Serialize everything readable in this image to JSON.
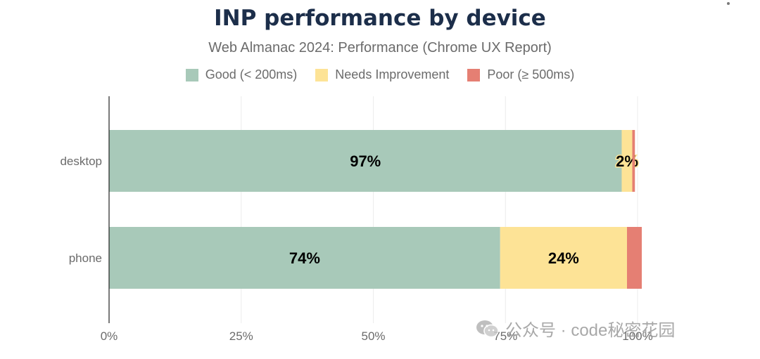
{
  "chart_data": {
    "type": "bar",
    "orientation": "horizontal",
    "stacked": true,
    "title": "INP performance by device",
    "subtitle": "Web Almanac 2024: Performance (Chrome UX Report)",
    "categories": [
      "desktop",
      "phone"
    ],
    "series": [
      {
        "name": "Good (< 200ms)",
        "color": "#a8c9b9",
        "values": [
          97,
          74
        ],
        "labels": [
          "97%",
          "74%"
        ]
      },
      {
        "name": "Needs Improvement",
        "color": "#fde396",
        "values": [
          2,
          24
        ],
        "labels": [
          "2%",
          "24%"
        ]
      },
      {
        "name": "Poor (≥ 500ms)",
        "color": "#e57f73",
        "values": [
          0.5,
          2.8
        ],
        "labels": [
          "",
          ""
        ]
      }
    ],
    "x_ticks": [
      0,
      25,
      50,
      75,
      100
    ],
    "x_tick_labels": [
      "0%",
      "25%",
      "50%",
      "75%",
      "100%"
    ],
    "xlim": [
      0,
      100
    ],
    "grid": true,
    "legend": "top-center"
  },
  "watermark": {
    "text": "公众号 · code秘密花园"
  }
}
